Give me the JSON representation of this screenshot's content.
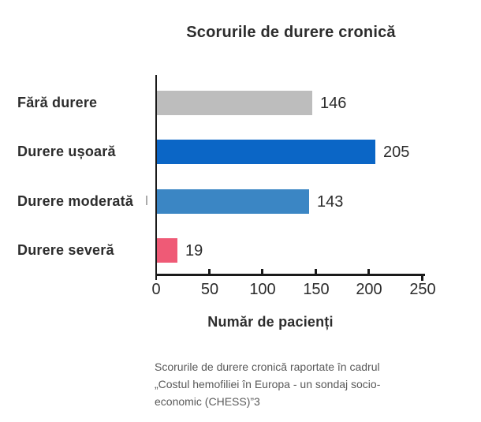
{
  "chart_data": {
    "type": "bar",
    "orientation": "horizontal",
    "title": "Scorurile de durere cronică",
    "categories": [
      "Fără durere",
      "Durere ușoară",
      "Durere moderată",
      "Durere severă"
    ],
    "values": [
      146,
      205,
      143,
      19
    ],
    "bar_colors": [
      "#bdbdbd",
      "#0b66c6",
      "#3b86c4",
      "#ef5a76"
    ],
    "xlabel": "Număr de pacienți",
    "ylabel": "",
    "xlim": [
      0,
      250
    ],
    "x_ticks": [
      0,
      50,
      100,
      150,
      200,
      250
    ],
    "grid": false,
    "value_labels_shown": true,
    "axis_color": "#1a1a1a"
  },
  "footer": {
    "lines": [
      "Scorurile de durere cronică raportate în cadrul",
      "„Costul hemofiliei în Europa - un sondaj socio-",
      "economic (CHESS)”3"
    ]
  }
}
